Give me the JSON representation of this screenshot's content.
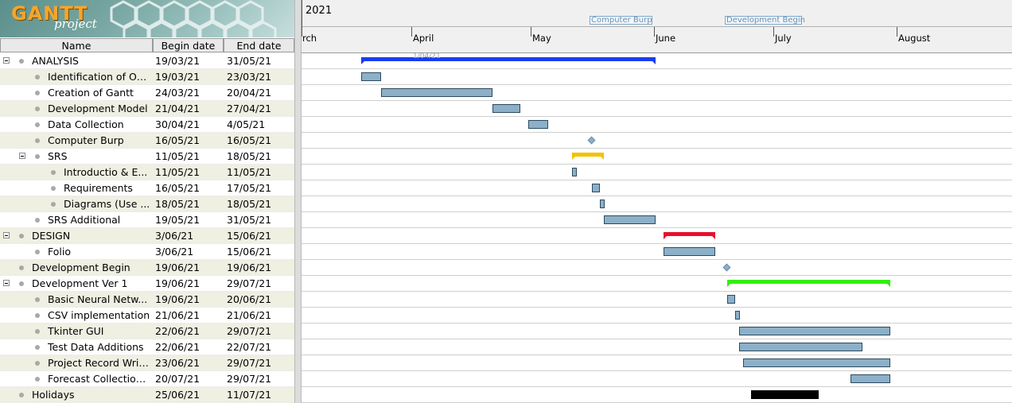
{
  "logo": {
    "brand": "GANTT",
    "sub": "project"
  },
  "columns": {
    "name": "Name",
    "begin": "Begin date",
    "end": "End date"
  },
  "timeline": {
    "year": "2021",
    "months": [
      "rch",
      "April",
      "May",
      "June",
      "July",
      "August"
    ],
    "milestone_tags": [
      "Computer Burp",
      "Development Begin"
    ],
    "today_label": "1/04/21"
  },
  "summary_colors": {
    "analysis": "#1a3cf0",
    "srs": "#f2c200",
    "design": "#e8102c",
    "dev1": "#33ee11",
    "holidays": "#000000"
  },
  "tasks": [
    {
      "name": "ANALYSIS",
      "begin": "19/03/21",
      "end": "31/05/21"
    },
    {
      "name": "Identification of Op...",
      "begin": "19/03/21",
      "end": "23/03/21"
    },
    {
      "name": "Creation of Gantt",
      "begin": "24/03/21",
      "end": "20/04/21"
    },
    {
      "name": "Development Model",
      "begin": "21/04/21",
      "end": "27/04/21"
    },
    {
      "name": "Data Collection",
      "begin": "30/04/21",
      "end": "4/05/21"
    },
    {
      "name": "Computer Burp",
      "begin": "16/05/21",
      "end": "16/05/21"
    },
    {
      "name": "SRS",
      "begin": "11/05/21",
      "end": "18/05/21"
    },
    {
      "name": "Introductio & E...",
      "begin": "11/05/21",
      "end": "11/05/21"
    },
    {
      "name": "Requirements",
      "begin": "16/05/21",
      "end": "17/05/21"
    },
    {
      "name": "Diagrams (Use ...",
      "begin": "18/05/21",
      "end": "18/05/21"
    },
    {
      "name": "SRS Additional",
      "begin": "19/05/21",
      "end": "31/05/21"
    },
    {
      "name": "DESIGN",
      "begin": "3/06/21",
      "end": "15/06/21"
    },
    {
      "name": "Folio",
      "begin": "3/06/21",
      "end": "15/06/21"
    },
    {
      "name": "Development Begin",
      "begin": "19/06/21",
      "end": "19/06/21"
    },
    {
      "name": "Development Ver 1",
      "begin": "19/06/21",
      "end": "29/07/21"
    },
    {
      "name": "Basic Neural Netw...",
      "begin": "19/06/21",
      "end": "20/06/21"
    },
    {
      "name": "CSV implementation",
      "begin": "21/06/21",
      "end": "21/06/21"
    },
    {
      "name": "Tkinter GUI",
      "begin": "22/06/21",
      "end": "29/07/21"
    },
    {
      "name": "Test Data Additions",
      "begin": "22/06/21",
      "end": "22/07/21"
    },
    {
      "name": "Project Record Writ...",
      "begin": "23/06/21",
      "end": "29/07/21"
    },
    {
      "name": "Forecast Collection...",
      "begin": "20/07/21",
      "end": "29/07/21"
    },
    {
      "name": "Holidays",
      "begin": "25/06/21",
      "end": "11/07/21"
    }
  ]
}
